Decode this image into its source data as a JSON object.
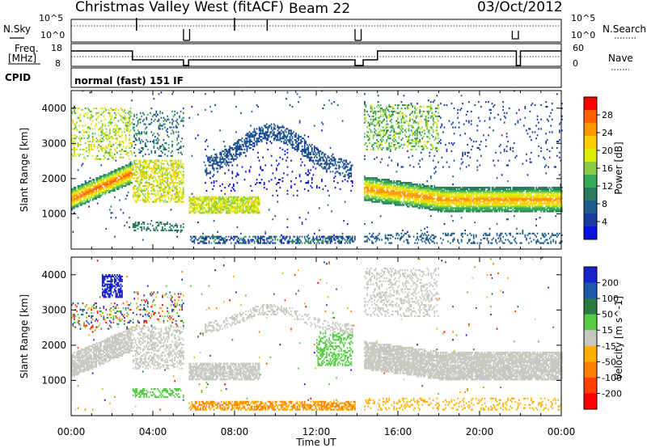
{
  "header": {
    "title": "Christmas Valley West (fitACF)",
    "beam": "Beam 22",
    "date": "03/Oct/2012"
  },
  "strip_labels": {
    "nsky": "N.Sky",
    "nsearch": "N.Search",
    "freq": "Freq.",
    "freq_unit": "[MHz]",
    "nave": "Nave",
    "cpid": "CPID",
    "mode": "normal (fast) 151 IF",
    "noise_ticks_left": [
      "10^5",
      "10^0"
    ],
    "noise_ticks_right": [
      "10^5",
      "10^0"
    ],
    "freq_ticks": [
      "18",
      "8"
    ],
    "nave_ticks": [
      "60",
      "0"
    ]
  },
  "axes": {
    "ylabel": "Slant Range [km]",
    "xlabel": "Time UT",
    "yticks": [
      "4000",
      "3000",
      "2000",
      "1000"
    ],
    "xticks": [
      "00:00",
      "04:00",
      "08:00",
      "12:00",
      "16:00",
      "20:00",
      "00:00"
    ]
  },
  "colorbars": {
    "power": {
      "label": "Power [dB]",
      "ticks": [
        "28",
        "24",
        "20",
        "16",
        "12",
        "8",
        "4"
      ],
      "colors": [
        "#ff0000",
        "#ff6000",
        "#ff9900",
        "#ffcc00",
        "#ddee00",
        "#88cc44",
        "#33aa55",
        "#2a7a5a",
        "#1e5a8a",
        "#1a3aa0",
        "#0a10e0"
      ]
    },
    "velocity": {
      "label": "Velocity [m s^-1]",
      "ticks": [
        "200",
        "100",
        "50",
        "15",
        "-15",
        "-50",
        "-100",
        "-200"
      ],
      "colors": [
        "#1a22cc",
        "#1b5aaa",
        "#2a7a44",
        "#55cc44",
        "#c8c8c0",
        "#ffb000",
        "#ff8000",
        "#ff4000",
        "#ff0000"
      ]
    }
  },
  "chart_data": [
    {
      "type": "heatmap",
      "title": "Power",
      "xlabel": "Time UT",
      "ylabel": "Slant Range [km]",
      "xlim": [
        0,
        24
      ],
      "ylim": [
        0,
        4500
      ],
      "data_gaps_hours": [
        [
          5.5,
          5.75
        ],
        [
          13.9,
          14.3
        ]
      ],
      "features": [
        {
          "time_range": [
            0,
            3.0
          ],
          "range_km": [
            1200,
            2200
          ],
          "level": "high"
        },
        {
          "time_range": [
            5.75,
            9.2
          ],
          "range_km": [
            1000,
            1500
          ],
          "level": "medium"
        },
        {
          "time_range": [
            7.0,
            13.5
          ],
          "range_km": [
            2000,
            3300
          ],
          "level": "low"
        },
        {
          "time_range": [
            14.5,
            24
          ],
          "range_km": [
            1300,
            2200
          ],
          "level": "high"
        },
        {
          "time_range": [
            14.5,
            18.0
          ],
          "range_km": [
            2800,
            4100
          ],
          "level": "medium"
        }
      ],
      "colorbar_ticks_dB": [
        4,
        8,
        12,
        16,
        20,
        24,
        28
      ]
    },
    {
      "type": "heatmap",
      "title": "Velocity",
      "xlabel": "Time UT",
      "ylabel": "Slant Range [km]",
      "xlim": [
        0,
        24
      ],
      "ylim": [
        0,
        4500
      ],
      "data_gaps_hours": [
        [
          5.5,
          5.75
        ],
        [
          13.9,
          14.3
        ]
      ],
      "features": [
        {
          "time_range": [
            0,
            3.0
          ],
          "range_km": [
            1000,
            2200
          ],
          "velocity_ms": -15
        },
        {
          "time_range": [
            1.5,
            2.5
          ],
          "range_km": [
            3300,
            4000
          ],
          "velocity_ms": 200
        },
        {
          "time_range": [
            5.75,
            9.2
          ],
          "range_km": [
            1000,
            1500
          ],
          "velocity_ms": -15
        },
        {
          "time_range": [
            6.0,
            13.8
          ],
          "range_km": [
            100,
            400
          ],
          "velocity_ms": -50
        },
        {
          "time_range": [
            12.0,
            13.8
          ],
          "range_km": [
            1400,
            2400
          ],
          "velocity_ms": 50
        },
        {
          "time_range": [
            14.5,
            24
          ],
          "range_km": [
            1200,
            2200
          ],
          "velocity_ms": -15
        }
      ],
      "colorbar_ticks_ms": [
        200,
        100,
        50,
        15,
        -15,
        -50,
        -100,
        -200
      ]
    }
  ]
}
